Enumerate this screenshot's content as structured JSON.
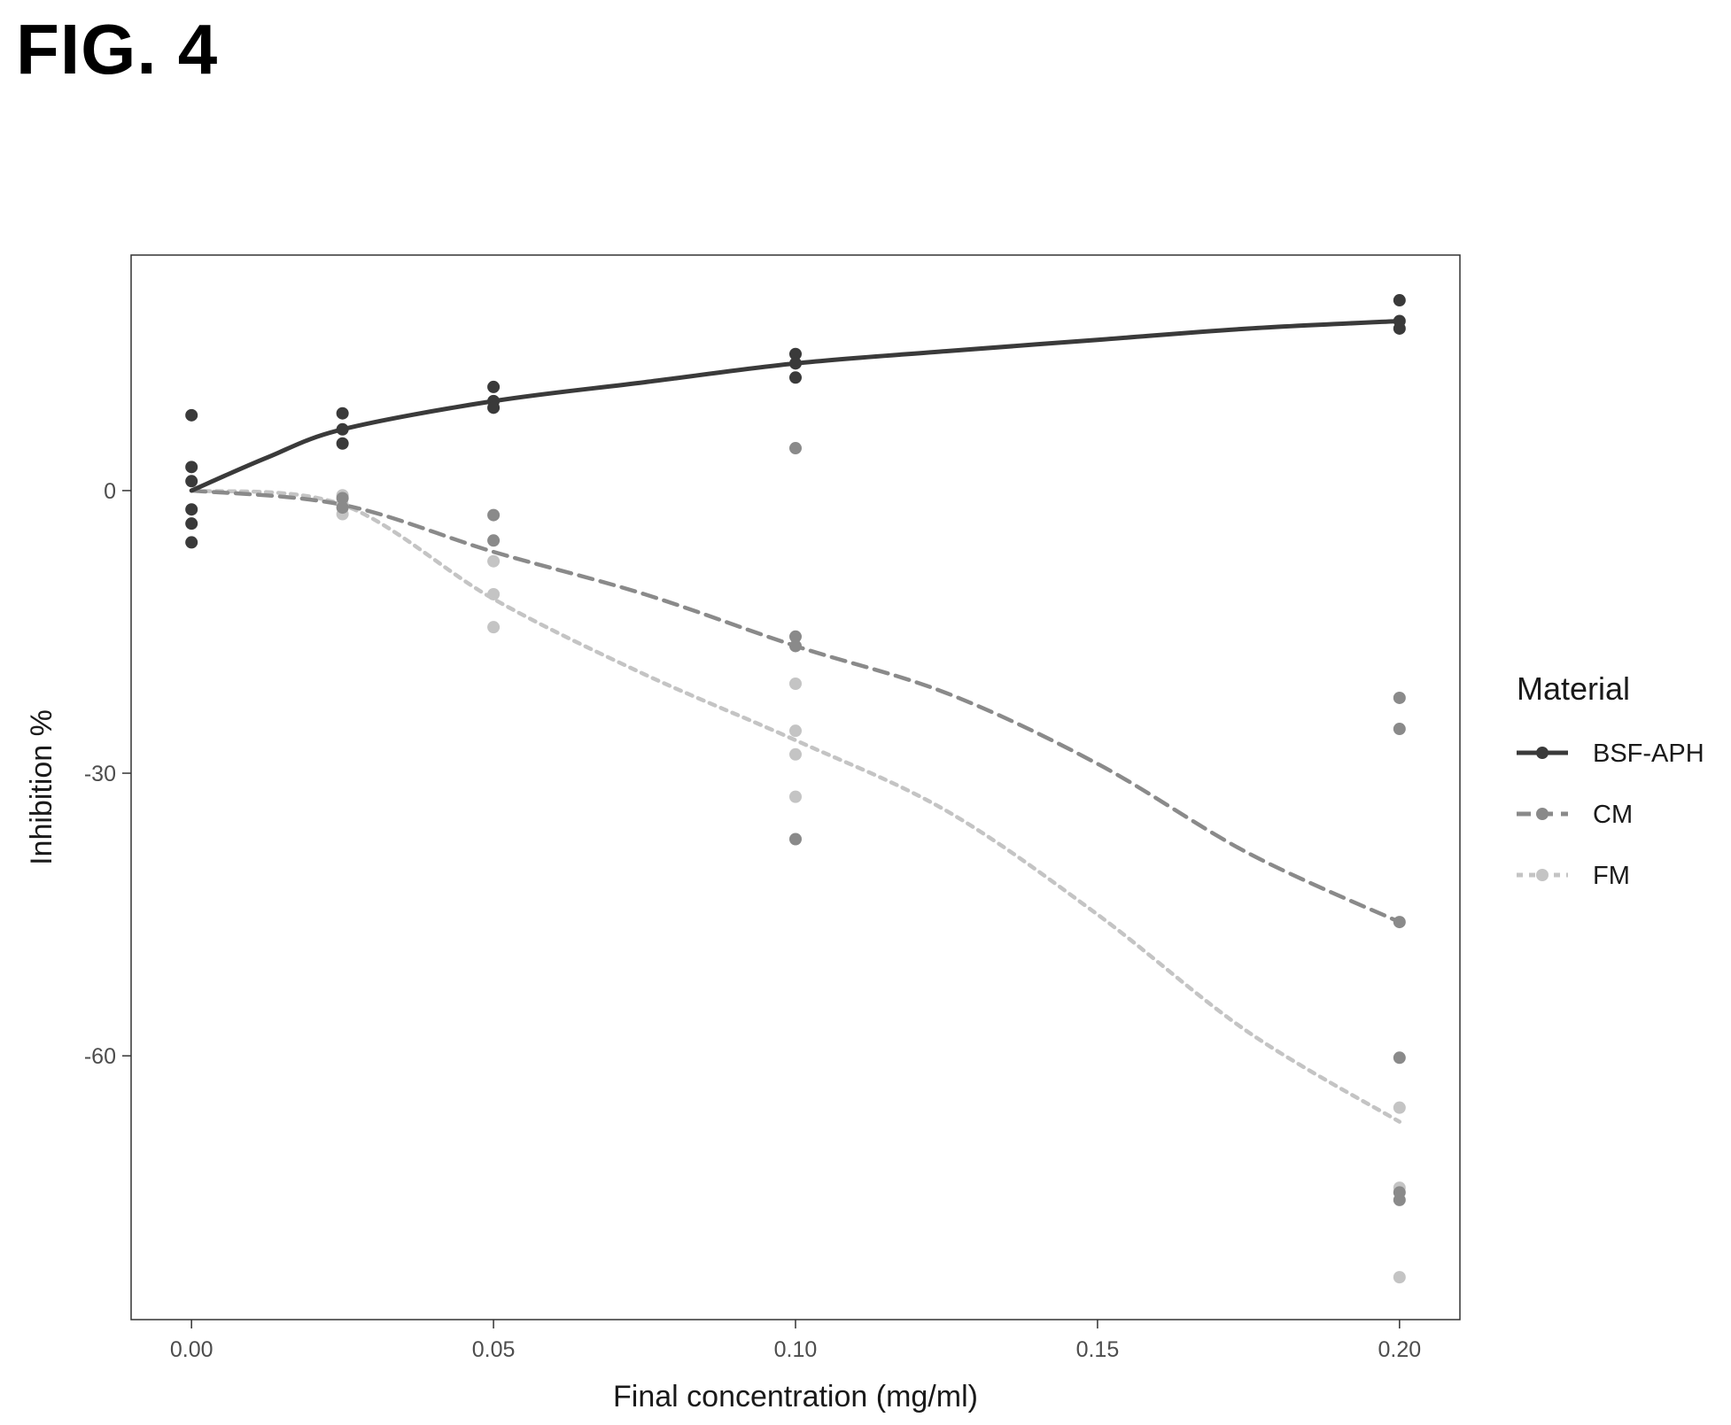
{
  "figure": {
    "title": "FIG. 4"
  },
  "chart_data": {
    "type": "scatter",
    "title": "",
    "xlabel": "Final concentration (mg/ml)",
    "ylabel": "Inhibition %",
    "xlim": [
      -0.01,
      0.21
    ],
    "ylim": [
      -88,
      25
    ],
    "x_ticks": [
      0.0,
      0.05,
      0.1,
      0.15,
      0.2
    ],
    "x_tick_labels": [
      "0.00",
      "0.05",
      "0.10",
      "0.15",
      "0.20"
    ],
    "y_ticks": [
      0,
      -30,
      -60
    ],
    "y_tick_labels": [
      "0",
      "-30",
      "-60"
    ],
    "grid": false,
    "legend": {
      "title": "Material",
      "position": "right"
    },
    "series": [
      {
        "name": "BSF-APH",
        "color": "#3a3a3a",
        "line_style": "solid",
        "points": [
          [
            0.0,
            8.0
          ],
          [
            0.0,
            2.5
          ],
          [
            0.0,
            1.0
          ],
          [
            0.0,
            -2.0
          ],
          [
            0.0,
            -3.5
          ],
          [
            0.0,
            -5.5
          ],
          [
            0.025,
            8.2
          ],
          [
            0.025,
            6.5
          ],
          [
            0.025,
            5.0
          ],
          [
            0.05,
            11.0
          ],
          [
            0.05,
            9.5
          ],
          [
            0.05,
            8.8
          ],
          [
            0.1,
            14.5
          ],
          [
            0.1,
            13.5
          ],
          [
            0.1,
            12.0
          ],
          [
            0.2,
            20.2
          ],
          [
            0.2,
            18.0
          ],
          [
            0.2,
            17.2
          ]
        ],
        "trend": [
          [
            0.0,
            0.0
          ],
          [
            0.0125,
            3.5
          ],
          [
            0.025,
            6.5
          ],
          [
            0.05,
            9.5
          ],
          [
            0.075,
            11.5
          ],
          [
            0.1,
            13.5
          ],
          [
            0.125,
            14.8
          ],
          [
            0.15,
            16.0
          ],
          [
            0.175,
            17.2
          ],
          [
            0.2,
            18.0
          ]
        ]
      },
      {
        "name": "CM",
        "color": "#8a8a8a",
        "line_style": "dashed",
        "points": [
          [
            0.025,
            -0.8
          ],
          [
            0.025,
            -1.8
          ],
          [
            0.05,
            -2.6
          ],
          [
            0.05,
            -5.3
          ],
          [
            0.1,
            4.5
          ],
          [
            0.1,
            -15.5
          ],
          [
            0.1,
            -16.5
          ],
          [
            0.1,
            -37.0
          ],
          [
            0.2,
            -22.0
          ],
          [
            0.2,
            -25.3
          ],
          [
            0.2,
            -45.8
          ],
          [
            0.2,
            -60.2
          ],
          [
            0.2,
            -74.5
          ],
          [
            0.2,
            -75.3
          ]
        ],
        "trend": [
          [
            0.0,
            0.0
          ],
          [
            0.025,
            -1.5
          ],
          [
            0.05,
            -6.5
          ],
          [
            0.075,
            -11.0
          ],
          [
            0.1,
            -16.5
          ],
          [
            0.125,
            -21.5
          ],
          [
            0.15,
            -29.0
          ],
          [
            0.175,
            -38.5
          ],
          [
            0.2,
            -45.8
          ]
        ]
      },
      {
        "name": "FM",
        "color": "#c4c4c4",
        "line_style": "dotted",
        "points": [
          [
            0.025,
            -0.5
          ],
          [
            0.025,
            -1.5
          ],
          [
            0.025,
            -2.5
          ],
          [
            0.05,
            -7.5
          ],
          [
            0.05,
            -11.0
          ],
          [
            0.05,
            -14.5
          ],
          [
            0.1,
            -20.5
          ],
          [
            0.1,
            -25.5
          ],
          [
            0.1,
            -28.0
          ],
          [
            0.1,
            -32.5
          ],
          [
            0.2,
            -65.5
          ],
          [
            0.2,
            -74.0
          ],
          [
            0.2,
            -83.5
          ]
        ],
        "trend": [
          [
            0.0,
            0.0
          ],
          [
            0.025,
            -1.5
          ],
          [
            0.05,
            -11.5
          ],
          [
            0.075,
            -19.5
          ],
          [
            0.1,
            -26.5
          ],
          [
            0.125,
            -34.0
          ],
          [
            0.15,
            -45.0
          ],
          [
            0.175,
            -57.5
          ],
          [
            0.2,
            -67.0
          ]
        ]
      }
    ]
  }
}
